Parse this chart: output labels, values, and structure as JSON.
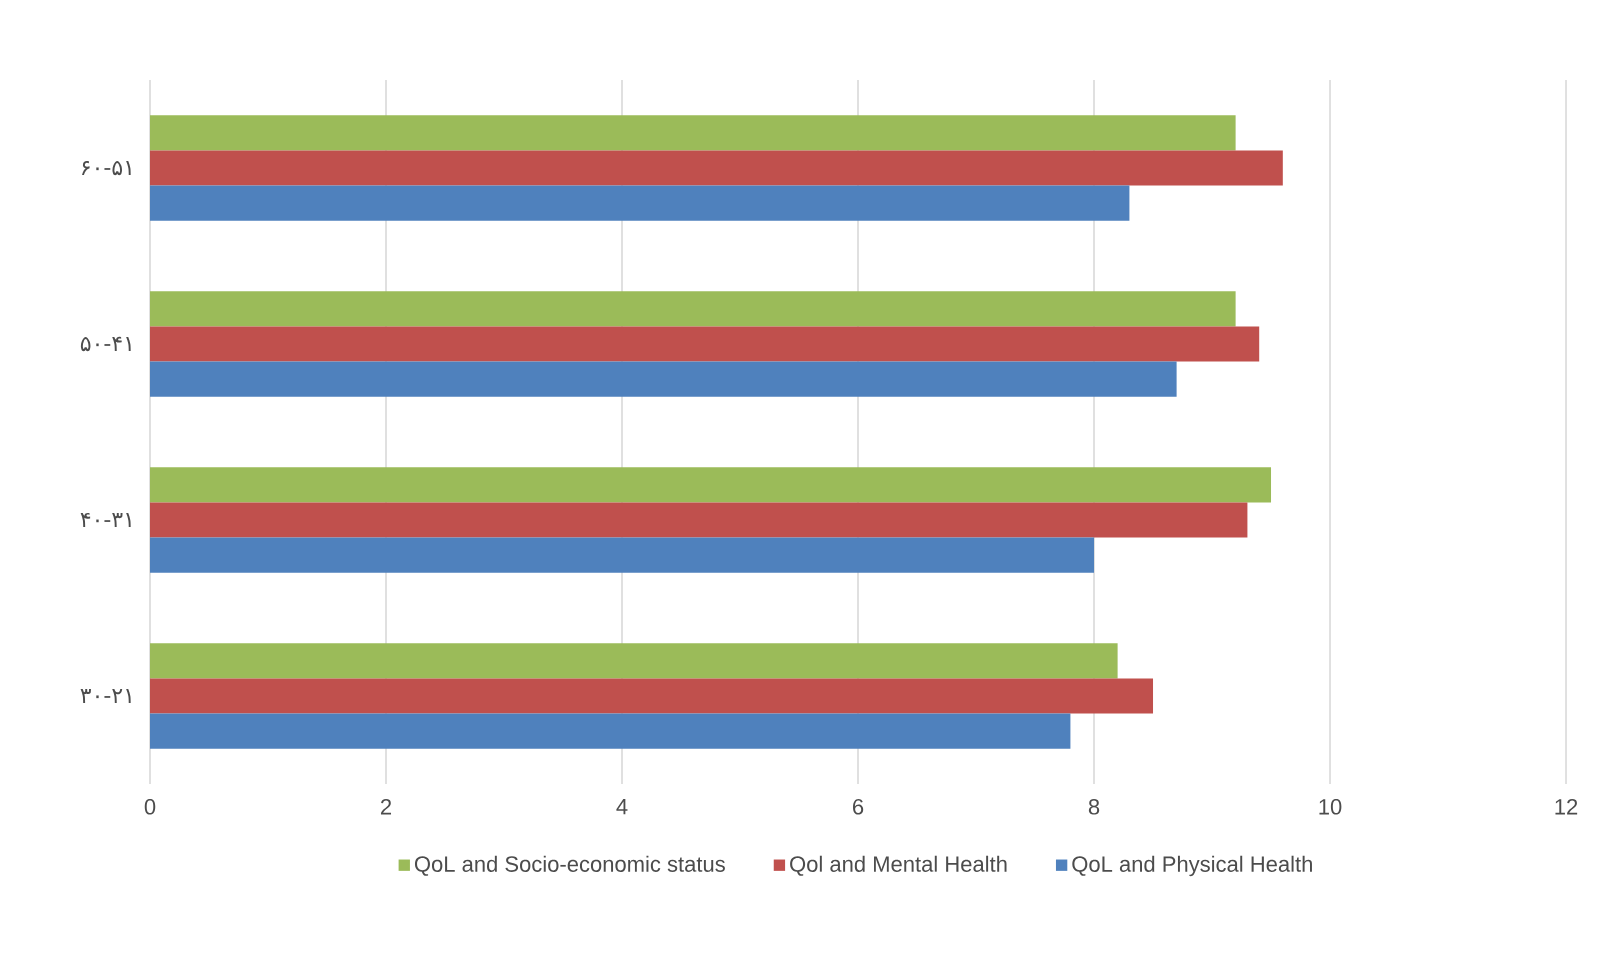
{
  "chart_data": {
    "type": "bar",
    "orientation": "horizontal",
    "categories": [
      "۶۰-۵۱",
      "۵۰-۴۱",
      "۴۰-۳۱",
      "۳۰-۲۱"
    ],
    "series": [
      {
        "name": "QoL and Socio-economic status",
        "color": "#9bbb59",
        "values": [
          9.2,
          9.2,
          9.5,
          8.2
        ]
      },
      {
        "name": "Qol and Mental Health",
        "color": "#c0504d",
        "values": [
          9.6,
          9.4,
          9.3,
          8.5
        ]
      },
      {
        "name": "QoL and Physical Health",
        "color": "#4f81bd",
        "values": [
          8.3,
          8.7,
          8.0,
          7.8
        ]
      }
    ],
    "xlim": [
      0,
      12
    ],
    "xticks": [
      0,
      2,
      4,
      6,
      8,
      10,
      12
    ],
    "grid": "x",
    "legend": "bottom"
  }
}
